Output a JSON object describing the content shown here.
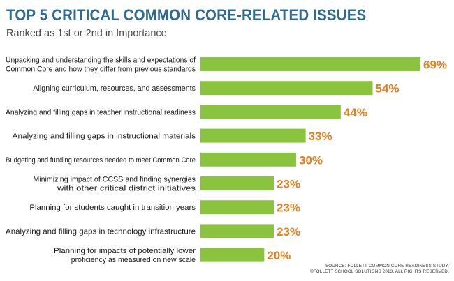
{
  "header": {
    "title": "TOP 5 CRITICAL COMMON CORE-RELATED ISSUES",
    "subtitle": "Ranked as 1st or 2nd in Importance"
  },
  "source": {
    "line1": "SOURCE: FOLLETT COMMON CORE READINESS STUDY.",
    "line2": "©FOLLETT SCHOOL SOLUTIONS 2013. ALL RIGHTS RESERVED."
  },
  "colors": {
    "title": "#2e6b8f",
    "bar": "#8ac43f",
    "value_label": "#e2801e",
    "category_text": "#1a1a1a"
  },
  "chart_data": {
    "type": "bar",
    "orientation": "horizontal",
    "title": "TOP 5 CRITICAL COMMON CORE-RELATED ISSUES",
    "subtitle": "Ranked as 1st or 2nd in Importance",
    "xlabel": "",
    "ylabel": "",
    "categories": [
      [
        "Unpacking and understanding the skills and expectations of",
        "Common Core and how they differ from previous standards"
      ],
      [
        "Aligning curriculum, resources, and assessments"
      ],
      [
        "Analyzing and filling gaps in teacher instructional readiness"
      ],
      [
        "Analyzing and filling gaps in instructional materials"
      ],
      [
        "Budgeting and funding resources needed to meet Common Core"
      ],
      [
        "Minimizing impact of CCSS and finding synergies",
        "with other critical district initiatives"
      ],
      [
        "Planning for students caught in transition years"
      ],
      [
        "Analyzing and filling gaps in technology infrastructure"
      ],
      [
        "Planning for impacts of potentially lower",
        "proficiency as measured on new scale"
      ]
    ],
    "values": [
      69,
      54,
      44,
      33,
      30,
      23,
      23,
      23,
      20
    ],
    "value_labels": [
      "69%",
      "54%",
      "44%",
      "33%",
      "30%",
      "23%",
      "23%",
      "23%",
      "20%"
    ],
    "unit": "%",
    "xlim": [
      0,
      69
    ],
    "grid": false,
    "legend": "none"
  }
}
